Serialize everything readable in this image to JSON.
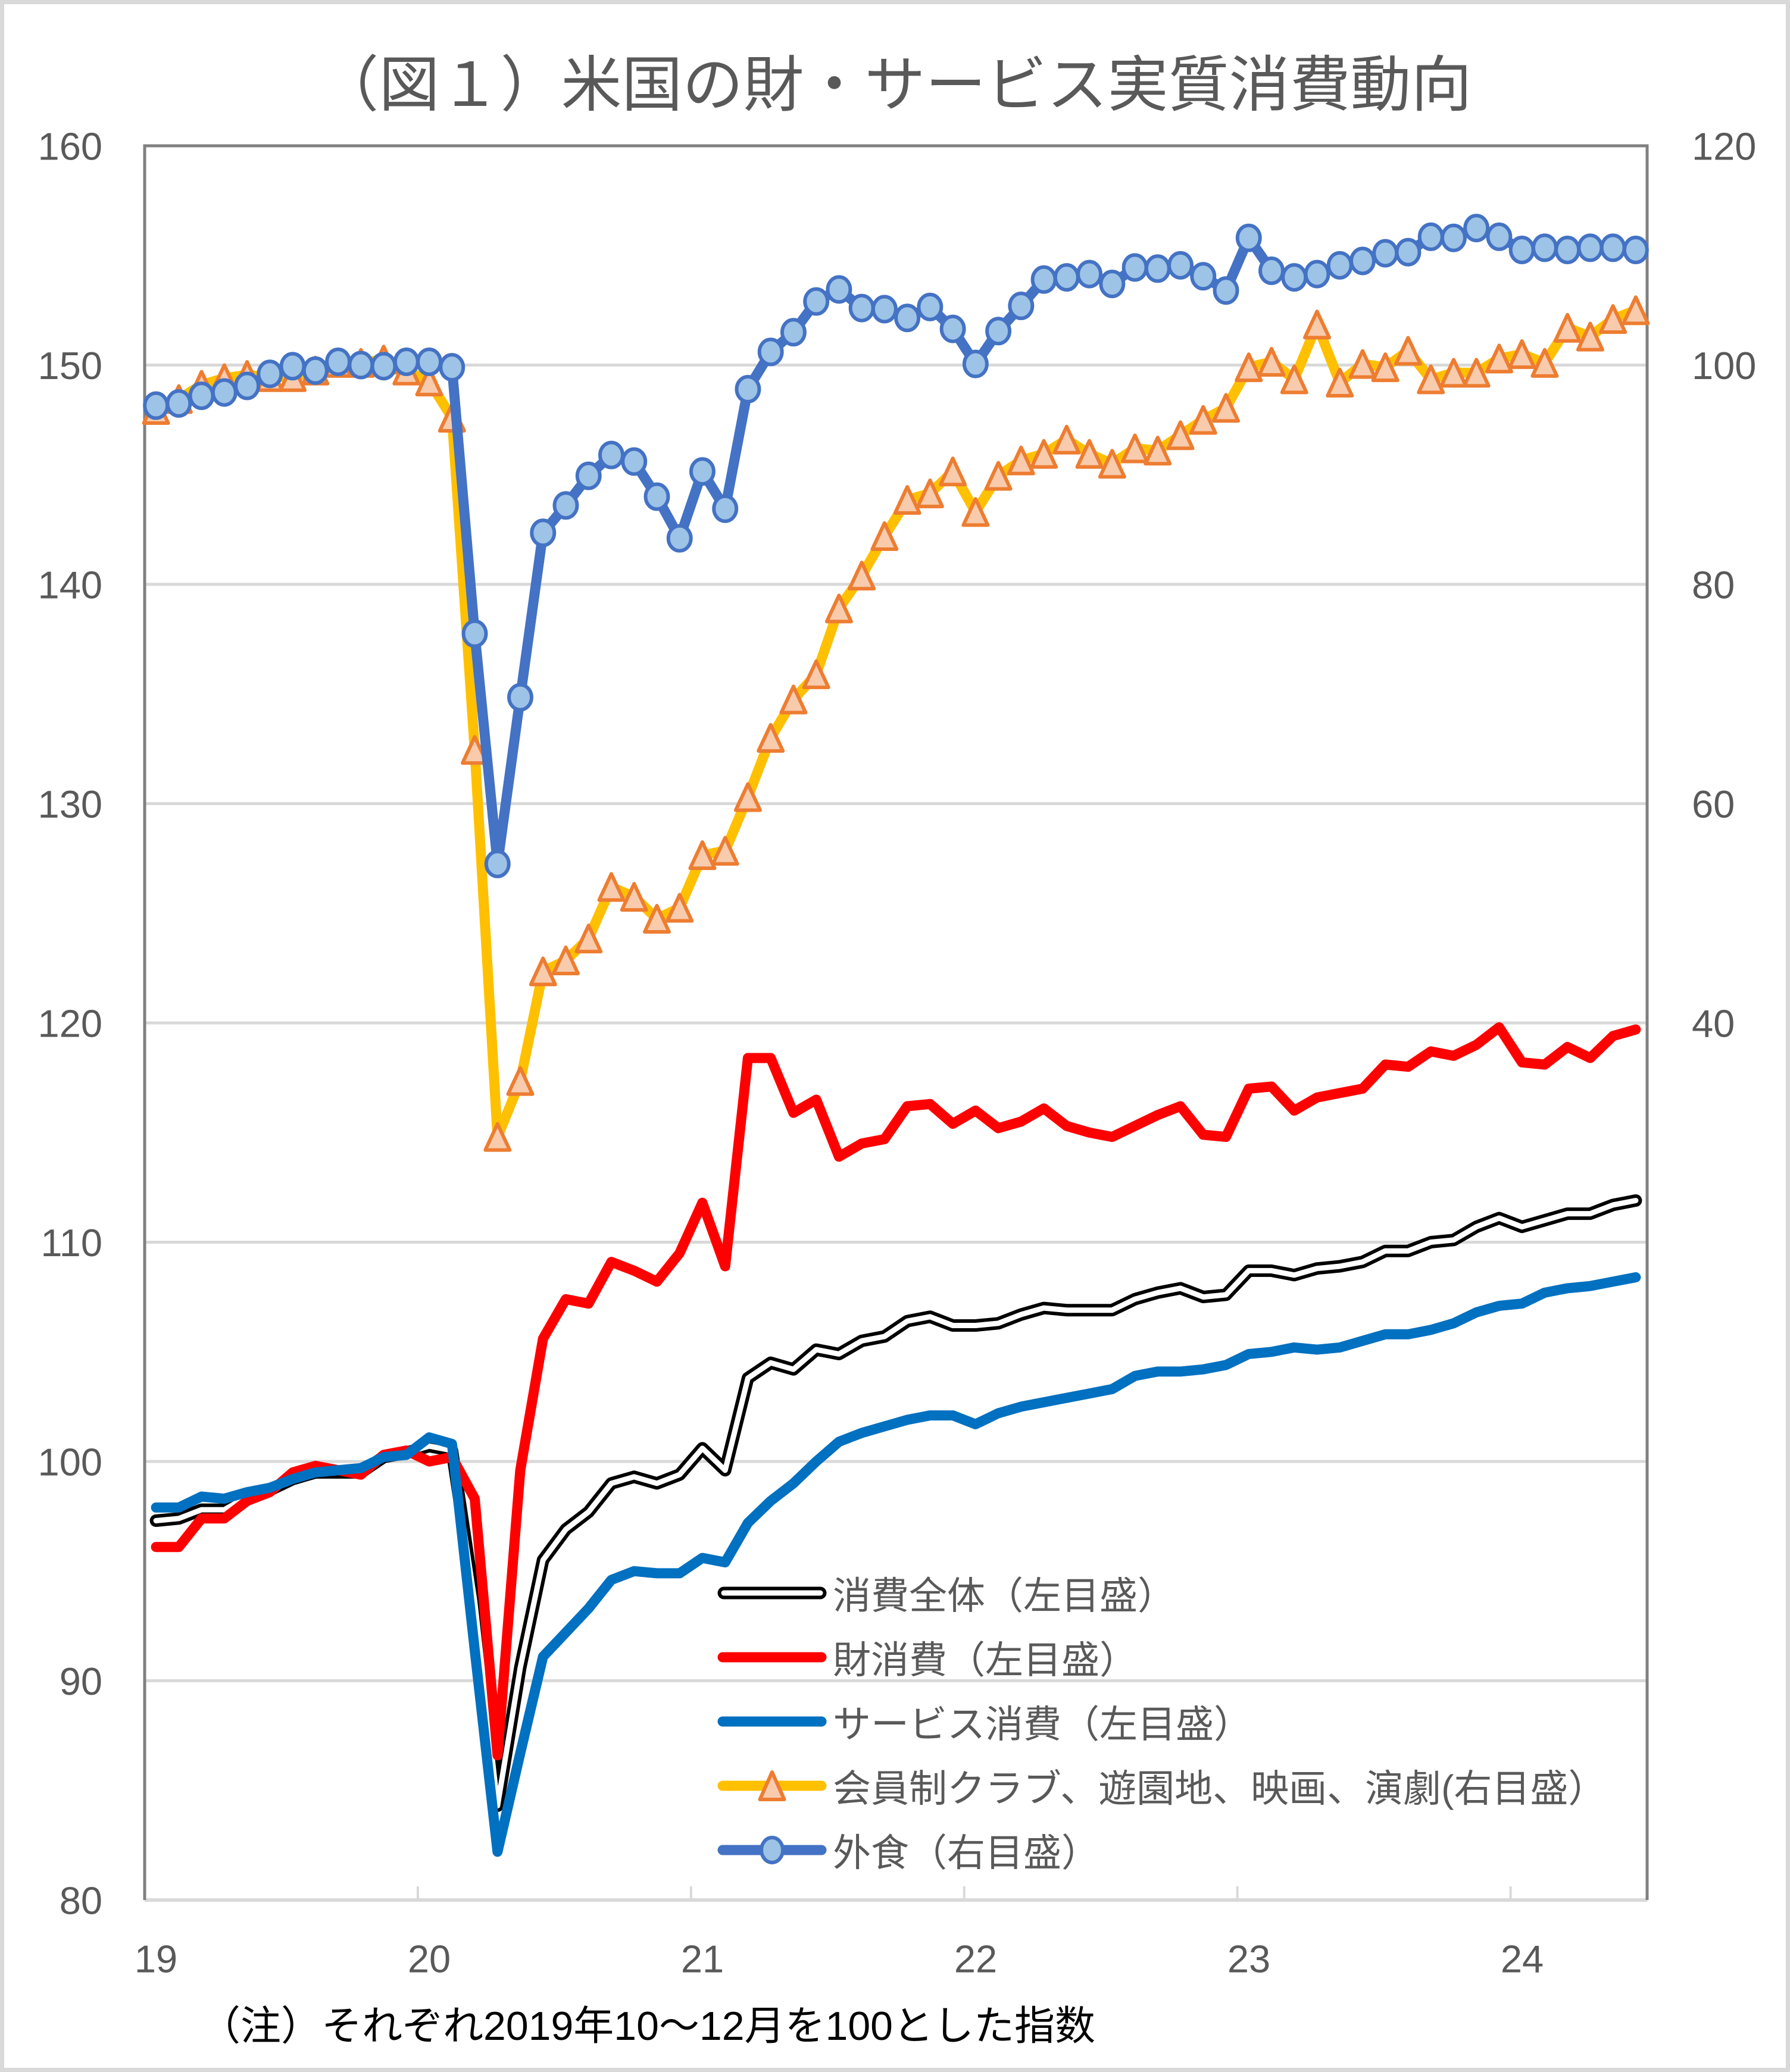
{
  "title": "（図１）米国の財・サービス実質消費動向",
  "footnote": "（注）それぞれ2019年10～12月を100とした指数",
  "axes": {
    "left": {
      "ticks": [
        "160",
        "150",
        "140",
        "130",
        "120",
        "110",
        "100",
        "90",
        "80"
      ]
    },
    "right": {
      "ticks": [
        "120",
        "100",
        "80",
        "60",
        "40"
      ]
    },
    "x": {
      "ticks": [
        "19",
        "20",
        "21",
        "22",
        "23",
        "24"
      ]
    }
  },
  "legend": {
    "items": [
      {
        "label": "消費全体（左目盛）",
        "icon": "double-line-icon"
      },
      {
        "label": "財消費（左目盛）",
        "icon": "red-line-icon"
      },
      {
        "label": "サービス消費（左目盛）",
        "icon": "blue-line-icon"
      },
      {
        "label": "会員制クラブ、遊園地、映画、演劇(右目盛）",
        "icon": "triangle-marker-line-icon"
      },
      {
        "label": "外食（右目盛）",
        "icon": "circle-marker-line-icon"
      }
    ]
  },
  "colors": {
    "text": "#595959",
    "gridline": "#D9D9D9",
    "axis_border": "#808080",
    "frame": "#D9D9D9",
    "total": "#000000",
    "goods": "#FF0000",
    "services": "#0070C0",
    "recreation_line": "#FFC000",
    "recreation_marker_fill": "#F8CBAD",
    "recreation_marker_stroke": "#ED7D31",
    "dining_line": "#4472C4",
    "dining_marker_fill": "#9DC3E6"
  },
  "chart_data": {
    "type": "line",
    "title": "（図１）米国の財・サービス実質消費動向",
    "xlabel": "",
    "ylabel": "",
    "note": "（注）それぞれ2019年10～12月を100とした指数",
    "grid": true,
    "legend_position": "inside-bottom-right",
    "x_tick_labels": [
      "19",
      "20",
      "21",
      "22",
      "23",
      "24"
    ],
    "left_axis": {
      "min": 80,
      "max": 160,
      "step": 10
    },
    "right_axis": {
      "min": -40,
      "max": 120,
      "step": 20,
      "visible_ticks": [
        40,
        60,
        80,
        100,
        120
      ]
    },
    "x": [
      "2019-01",
      "2019-02",
      "2019-03",
      "2019-04",
      "2019-05",
      "2019-06",
      "2019-07",
      "2019-08",
      "2019-09",
      "2019-10",
      "2019-11",
      "2019-12",
      "2020-01",
      "2020-02",
      "2020-03",
      "2020-04",
      "2020-05",
      "2020-06",
      "2020-07",
      "2020-08",
      "2020-09",
      "2020-10",
      "2020-11",
      "2020-12",
      "2021-01",
      "2021-02",
      "2021-03",
      "2021-04",
      "2021-05",
      "2021-06",
      "2021-07",
      "2021-08",
      "2021-09",
      "2021-10",
      "2021-11",
      "2021-12",
      "2022-01",
      "2022-02",
      "2022-03",
      "2022-04",
      "2022-05",
      "2022-06",
      "2022-07",
      "2022-08",
      "2022-09",
      "2022-10",
      "2022-11",
      "2022-12",
      "2023-01",
      "2023-02",
      "2023-03",
      "2023-04",
      "2023-05",
      "2023-06",
      "2023-07",
      "2023-08",
      "2023-09",
      "2023-10",
      "2023-11",
      "2023-12",
      "2024-01",
      "2024-02",
      "2024-03",
      "2024-04",
      "2024-05",
      "2024-06"
    ],
    "series": [
      {
        "name": "消費全体（左目盛）",
        "key": "total",
        "axis": "left",
        "style": "double",
        "color": "#000000",
        "values": [
          97.3,
          97.4,
          97.8,
          97.8,
          98.4,
          98.7,
          99.2,
          99.5,
          99.5,
          99.5,
          100.2,
          100.4,
          100.7,
          100.5,
          93.6,
          84.3,
          90.6,
          95.5,
          96.9,
          97.7,
          99.0,
          99.3,
          99.0,
          99.4,
          100.6,
          99.6,
          103.8,
          104.5,
          104.2,
          105.1,
          104.9,
          105.5,
          105.7,
          106.4,
          106.6,
          106.2,
          106.2,
          106.3,
          106.7,
          107.0,
          106.9,
          106.9,
          106.9,
          107.4,
          107.7,
          107.9,
          107.5,
          107.6,
          108.7,
          108.7,
          108.5,
          108.8,
          108.9,
          109.1,
          109.6,
          109.6,
          110.0,
          110.1,
          110.7,
          111.1,
          110.7,
          111.0,
          111.3,
          111.3,
          111.7,
          111.9
        ]
      },
      {
        "name": "財消費（左目盛）",
        "key": "goods",
        "axis": "left",
        "style": "line",
        "color": "#FF0000",
        "values": [
          96.1,
          96.1,
          97.4,
          97.4,
          98.2,
          98.6,
          99.5,
          99.8,
          99.6,
          99.4,
          100.3,
          100.5,
          100.0,
          100.2,
          98.3,
          86.6,
          99.6,
          105.6,
          107.4,
          107.2,
          109.1,
          108.7,
          108.2,
          109.5,
          111.8,
          108.9,
          118.4,
          118.4,
          115.9,
          116.5,
          113.9,
          114.5,
          114.7,
          116.2,
          116.3,
          115.4,
          116.0,
          115.2,
          115.5,
          116.1,
          115.3,
          115.0,
          114.8,
          115.3,
          115.8,
          116.2,
          114.9,
          114.8,
          117.0,
          117.1,
          116.0,
          116.6,
          116.8,
          117.0,
          118.1,
          118.0,
          118.7,
          118.5,
          119.0,
          119.8,
          118.2,
          118.1,
          118.9,
          118.4,
          119.4,
          119.7
        ]
      },
      {
        "name": "サービス消費（左目盛）",
        "key": "services",
        "axis": "left",
        "style": "line",
        "color": "#0070C0",
        "values": [
          97.9,
          97.9,
          98.4,
          98.3,
          98.6,
          98.8,
          99.2,
          99.5,
          99.6,
          99.7,
          100.2,
          100.3,
          101.1,
          100.8,
          91.4,
          82.2,
          86.7,
          91.1,
          92.2,
          93.3,
          94.6,
          95.0,
          94.9,
          94.9,
          95.6,
          95.4,
          97.2,
          98.2,
          99.0,
          100.0,
          100.9,
          101.3,
          101.6,
          101.9,
          102.1,
          102.1,
          101.7,
          102.2,
          102.5,
          102.7,
          102.9,
          103.1,
          103.3,
          103.9,
          104.1,
          104.1,
          104.2,
          104.4,
          104.9,
          105.0,
          105.2,
          105.1,
          105.2,
          105.5,
          105.8,
          105.8,
          106.0,
          106.3,
          106.8,
          107.1,
          107.2,
          107.7,
          107.9,
          108.0,
          108.2,
          108.4
        ]
      },
      {
        "name": "会員制クラブ、遊園地、映画、演劇(右目盛）",
        "key": "recreation",
        "axis": "right",
        "style": "line",
        "marker": "triangle",
        "color": "#FFC000",
        "marker_fill": "#F8CBAD",
        "marker_stroke": "#ED7D31",
        "values": [
          95.9,
          96.9,
          98.2,
          98.8,
          99.1,
          98.9,
          98.9,
          99.5,
          100.2,
          100.2,
          100.5,
          99.5,
          98.5,
          95.2,
          64.9,
          29.6,
          34.7,
          44.7,
          45.7,
          47.7,
          52.4,
          51.5,
          49.5,
          50.5,
          55.3,
          55.7,
          60.6,
          66.0,
          69.5,
          71.8,
          77.8,
          80.8,
          84.4,
          87.7,
          88.3,
          90.3,
          86.6,
          89.9,
          91.3,
          91.9,
          93.2,
          91.9,
          91.0,
          92.4,
          92.2,
          93.6,
          95.0,
          96.1,
          99.8,
          100.3,
          98.7,
          103.7,
          98.4,
          100.1,
          99.8,
          101.3,
          98.7,
          99.3,
          99.3,
          100.6,
          101.0,
          100.2,
          103.4,
          102.6,
          104.2,
          105.0
        ]
      },
      {
        "name": "外食（右目盛）",
        "key": "dining",
        "axis": "right",
        "style": "line",
        "marker": "circle",
        "color": "#4472C4",
        "marker_fill": "#9DC3E6",
        "marker_stroke": "#4472C4",
        "values": [
          96.3,
          96.5,
          97.2,
          97.5,
          98.1,
          99.2,
          99.9,
          99.5,
          100.3,
          100.0,
          99.9,
          100.3,
          100.3,
          99.8,
          75.5,
          54.5,
          69.7,
          84.7,
          87.2,
          89.9,
          91.8,
          91.2,
          88.0,
          84.2,
          90.3,
          86.9,
          97.8,
          101.2,
          103.0,
          105.8,
          106.9,
          105.2,
          105.1,
          104.3,
          105.3,
          103.3,
          100.1,
          103.1,
          105.4,
          107.8,
          108.0,
          108.3,
          107.4,
          108.9,
          108.8,
          109.1,
          108.1,
          106.8,
          111.6,
          108.6,
          108.0,
          108.3,
          109.1,
          109.5,
          110.2,
          110.3,
          111.7,
          111.6,
          112.5,
          111.7,
          110.5,
          110.7,
          110.5,
          110.7,
          110.7,
          110.5
        ]
      }
    ]
  }
}
